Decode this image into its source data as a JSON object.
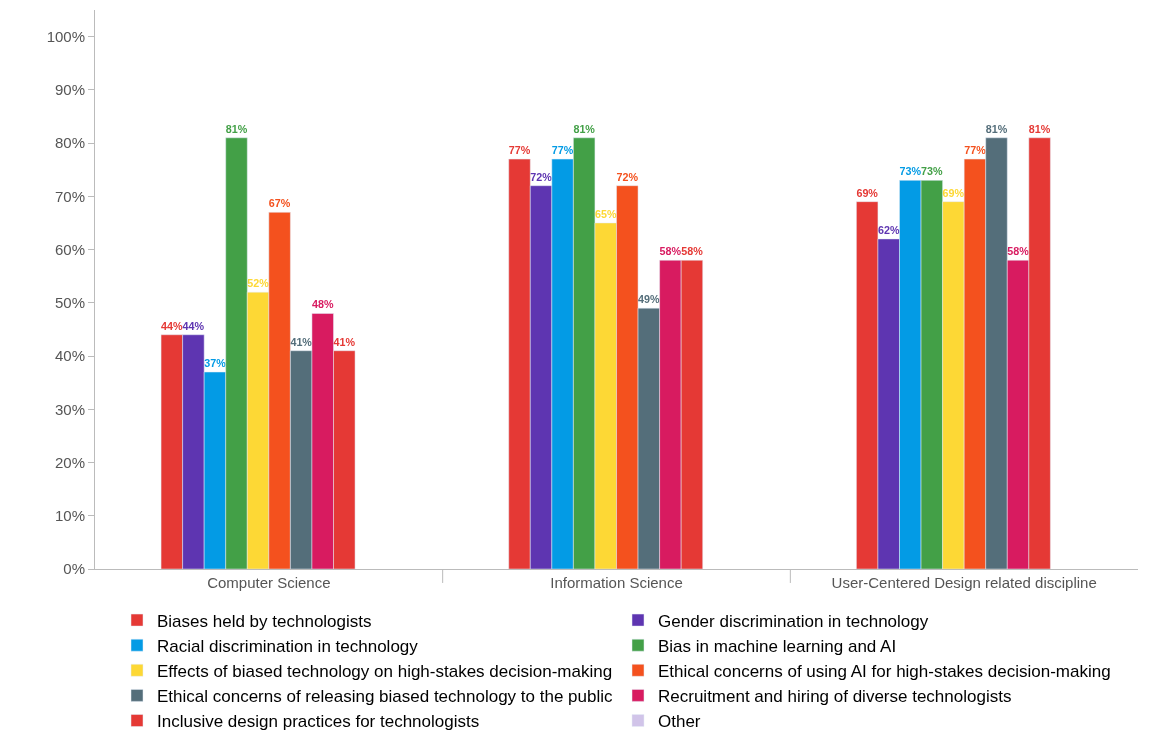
{
  "chart_data": {
    "type": "bar",
    "categories": [
      "Computer Science",
      "Information Science",
      "User-Centered Design related discipline"
    ],
    "ylim": [
      0,
      105
    ],
    "yticks": [
      {
        "value": 0,
        "label": "0%"
      },
      {
        "value": 10,
        "label": "10%"
      },
      {
        "value": 20,
        "label": "20%"
      },
      {
        "value": 30,
        "label": "30%"
      },
      {
        "value": 40,
        "label": "40%"
      },
      {
        "value": 50,
        "label": "50%"
      },
      {
        "value": 60,
        "label": "60%"
      },
      {
        "value": 70,
        "label": "70%"
      },
      {
        "value": 80,
        "label": "80%"
      },
      {
        "value": 90,
        "label": "90%"
      },
      {
        "value": 100,
        "label": "100%"
      }
    ],
    "legend": "bottom",
    "series": [
      {
        "name": "Biases held by technologists",
        "color": "#e53935",
        "values": [
          44,
          77,
          69
        ],
        "value_labels": [
          "44%",
          "77%",
          "69%"
        ]
      },
      {
        "name": "Gender discrimination in technology",
        "color": "#5e35b1",
        "values": [
          44,
          72,
          62
        ],
        "value_labels": [
          "44%",
          "72%",
          "62%"
        ]
      },
      {
        "name": "Racial discrimination in technology",
        "color": "#039be5",
        "values": [
          37,
          77,
          73
        ],
        "value_labels": [
          "37%",
          "77%",
          "73%"
        ]
      },
      {
        "name": "Bias in machine learning and AI",
        "color": "#43a047",
        "values": [
          81,
          81,
          73
        ],
        "value_labels": [
          "81%",
          "81%",
          "73%"
        ]
      },
      {
        "name": "Effects of biased technology on high-stakes decision-making",
        "color": "#fdd835",
        "values": [
          52,
          65,
          69
        ],
        "value_labels": [
          "52%",
          "65%",
          "69%"
        ]
      },
      {
        "name": "Ethical concerns of using AI for high-stakes decision-making",
        "color": "#f4511e",
        "values": [
          67,
          72,
          77
        ],
        "value_labels": [
          "67%",
          "72%",
          "77%"
        ]
      },
      {
        "name": "Ethical concerns of releasing biased technology to the public",
        "color": "#546e7a",
        "values": [
          41,
          49,
          81
        ],
        "value_labels": [
          "41%",
          "49%",
          "81%"
        ]
      },
      {
        "name": "Recruitment and hiring of diverse technologists",
        "color": "#d81b60",
        "values": [
          48,
          58,
          58
        ],
        "value_labels": [
          "48%",
          "58%",
          "58%"
        ]
      },
      {
        "name": "Inclusive design practices for technologists",
        "color": "#e53935",
        "values": [
          41,
          58,
          81
        ],
        "value_labels": [
          "41%",
          "58%",
          "81%"
        ]
      },
      {
        "name": "Other",
        "color": "#d1c4e9",
        "values": [
          null,
          null,
          null
        ],
        "value_labels": [
          null,
          null,
          null
        ]
      }
    ]
  }
}
